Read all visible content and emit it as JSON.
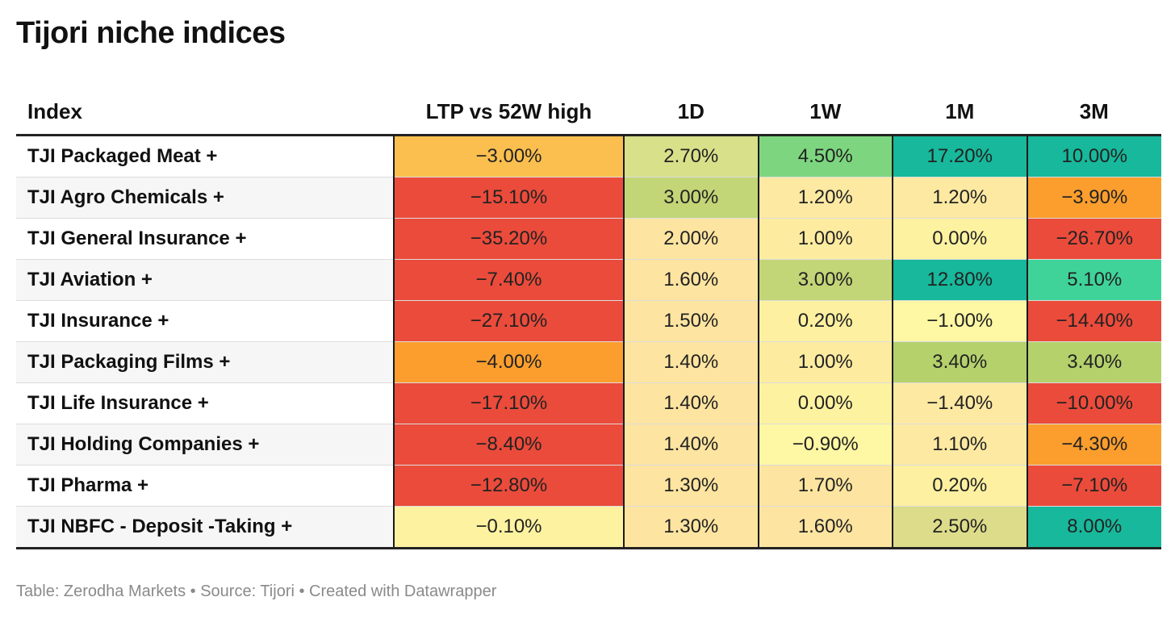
{
  "title": "Tijori niche indices",
  "footer": "Table: Zerodha Markets • Source: Tijori • Created with Datawrapper",
  "chart_data": {
    "type": "table",
    "title": "Tijori niche indices",
    "columns": [
      "Index",
      "LTP vs 52W high",
      "1D",
      "1W",
      "1M",
      "3M"
    ],
    "rows": [
      {
        "index": "TJI Packaged Meat +",
        "values": [
          "−3.00%",
          "2.70%",
          "4.50%",
          "17.20%",
          "10.00%"
        ],
        "numeric": [
          -3.0,
          2.7,
          4.5,
          17.2,
          10.0
        ],
        "colors": [
          "#fbbf4f",
          "#d8e08a",
          "#7dd67f",
          "#17b89b",
          "#17b89b"
        ]
      },
      {
        "index": "TJI Agro Chemicals +",
        "values": [
          "−15.10%",
          "3.00%",
          "1.20%",
          "1.20%",
          "−3.90%"
        ],
        "numeric": [
          -15.1,
          3.0,
          1.2,
          1.2,
          -3.9
        ],
        "colors": [
          "#eb4b3b",
          "#c2d577",
          "#fde9a2",
          "#fde9a2",
          "#fb9e2d"
        ]
      },
      {
        "index": "TJI General Insurance +",
        "values": [
          "−35.20%",
          "2.00%",
          "1.00%",
          "0.00%",
          "−26.70%"
        ],
        "numeric": [
          -35.2,
          2.0,
          1.0,
          0.0,
          -26.7
        ],
        "colors": [
          "#eb4b3b",
          "#fde4a0",
          "#fdeba0",
          "#fdf2a0",
          "#eb4b3b"
        ]
      },
      {
        "index": "TJI Aviation +",
        "values": [
          "−7.40%",
          "1.60%",
          "3.00%",
          "12.80%",
          "5.10%"
        ],
        "numeric": [
          -7.4,
          1.6,
          3.0,
          12.8,
          5.1
        ],
        "colors": [
          "#eb4b3b",
          "#fde4a0",
          "#c2d577",
          "#17b89b",
          "#3fd39a"
        ]
      },
      {
        "index": "TJI Insurance +",
        "values": [
          "−27.10%",
          "1.50%",
          "0.20%",
          "−1.00%",
          "−14.40%"
        ],
        "numeric": [
          -27.1,
          1.5,
          0.2,
          -1.0,
          -14.4
        ],
        "colors": [
          "#eb4b3b",
          "#fde4a0",
          "#fdf0a0",
          "#fef7a4",
          "#eb4b3b"
        ]
      },
      {
        "index": "TJI Packaging Films +",
        "values": [
          "−4.00%",
          "1.40%",
          "1.00%",
          "3.40%",
          "3.40%"
        ],
        "numeric": [
          -4.0,
          1.4,
          1.0,
          3.4,
          3.4
        ],
        "colors": [
          "#fb9e2d",
          "#fde4a0",
          "#fdeba0",
          "#b4d16c",
          "#b4d16c"
        ]
      },
      {
        "index": "TJI Life Insurance +",
        "values": [
          "−17.10%",
          "1.40%",
          "0.00%",
          "−1.40%",
          "−10.00%"
        ],
        "numeric": [
          -17.1,
          1.4,
          0.0,
          -1.4,
          -10.0
        ],
        "colors": [
          "#eb4b3b",
          "#fde4a0",
          "#fdf2a0",
          "#fde9a2",
          "#eb4b3b"
        ]
      },
      {
        "index": "TJI Holding Companies +",
        "values": [
          "−8.40%",
          "1.40%",
          "−0.90%",
          "1.10%",
          "−4.30%"
        ],
        "numeric": [
          -8.4,
          1.4,
          -0.9,
          1.1,
          -4.3
        ],
        "colors": [
          "#eb4b3b",
          "#fde4a0",
          "#fef7a4",
          "#fde9a2",
          "#fb9e2d"
        ]
      },
      {
        "index": "TJI Pharma +",
        "values": [
          "−12.80%",
          "1.30%",
          "1.70%",
          "0.20%",
          "−7.10%"
        ],
        "numeric": [
          -12.8,
          1.3,
          1.7,
          0.2,
          -7.1
        ],
        "colors": [
          "#eb4b3b",
          "#fde4a0",
          "#fde4a0",
          "#fdf0a0",
          "#eb4b3b"
        ]
      },
      {
        "index": "TJI NBFC - Deposit -Taking +",
        "values": [
          "−0.10%",
          "1.30%",
          "1.60%",
          "2.50%",
          "8.00%"
        ],
        "numeric": [
          -0.1,
          1.3,
          1.6,
          2.5,
          8.0
        ],
        "colors": [
          "#fdf2a0",
          "#fde4a0",
          "#fde4a0",
          "#dcdc8a",
          "#17b89b"
        ]
      }
    ]
  }
}
